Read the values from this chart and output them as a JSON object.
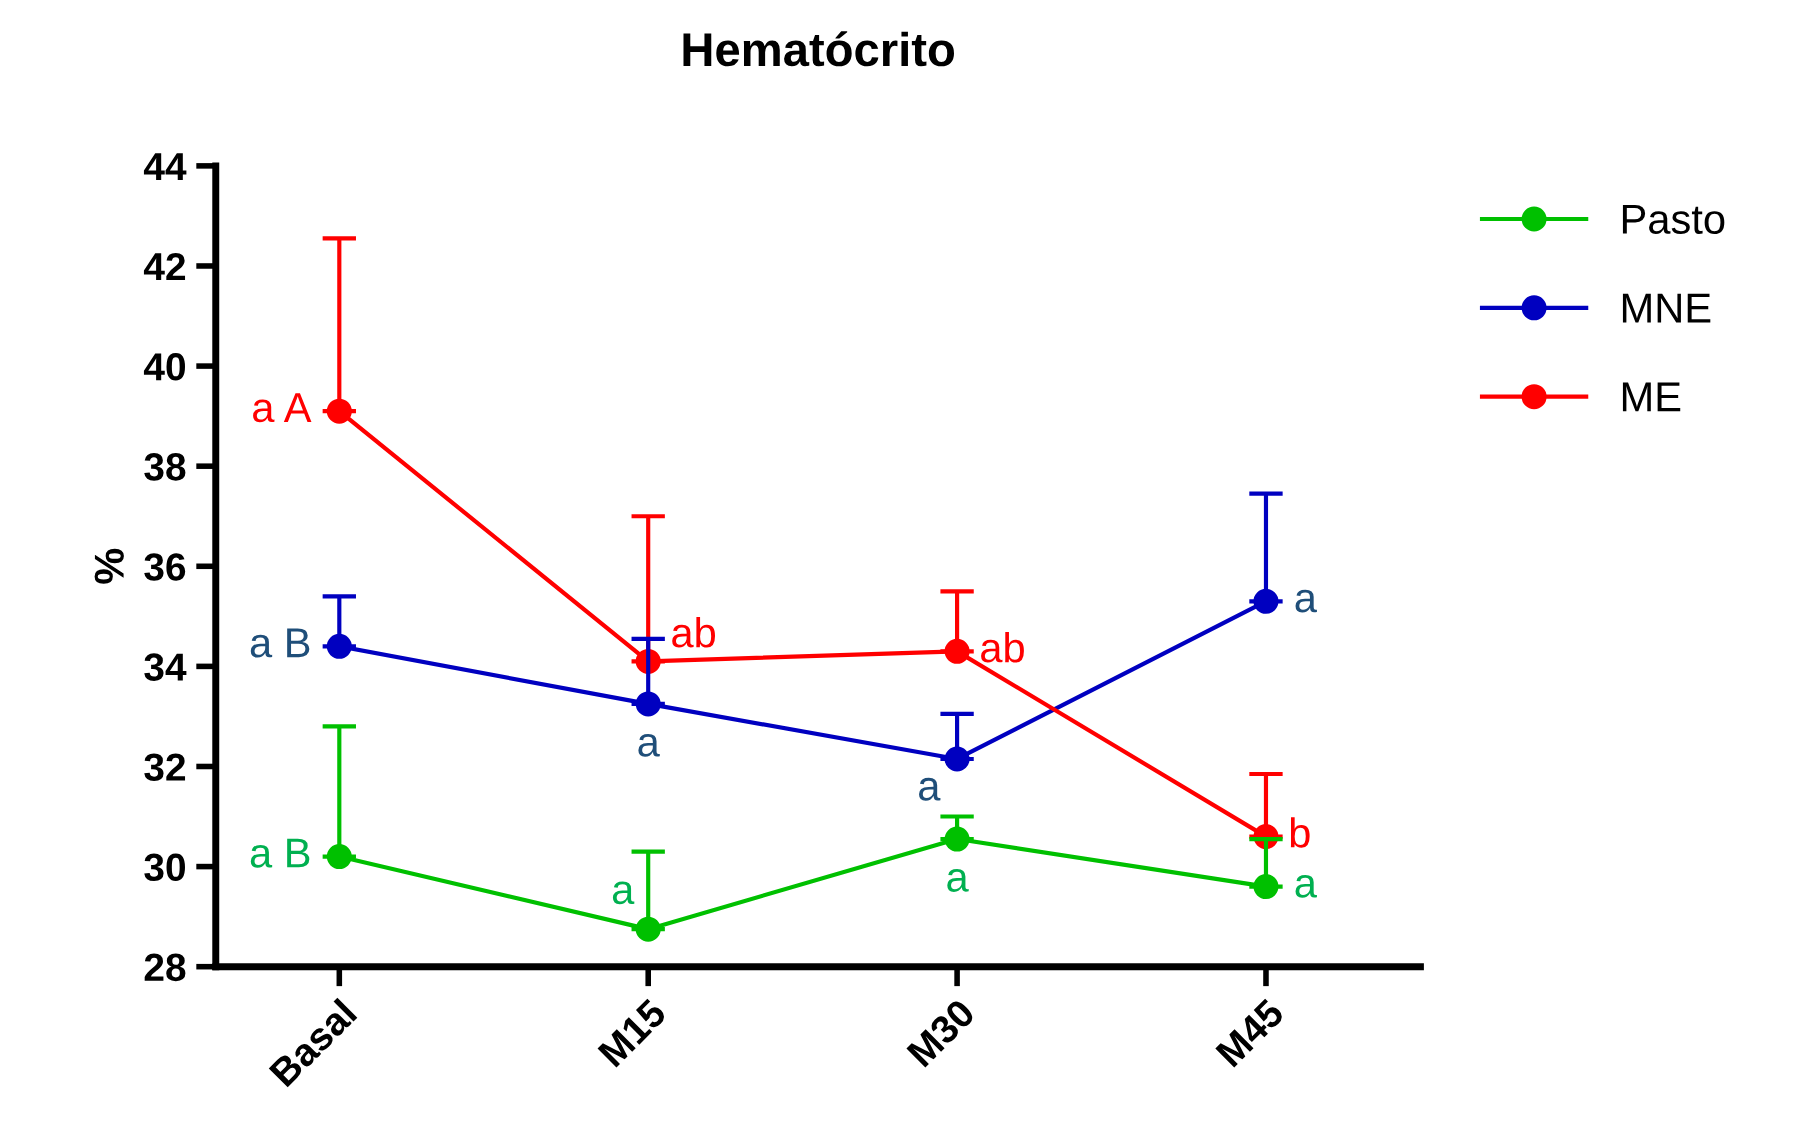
{
  "chart_data": {
    "type": "line",
    "title": "Hematócrito",
    "ylabel": "%",
    "categories": [
      "Basal",
      "M15",
      "M30",
      "M45"
    ],
    "series": [
      {
        "name": "Pasto",
        "color": "#00c000",
        "values": [
          30.2,
          28.75,
          30.55,
          29.6
        ],
        "errors": [
          [
            30.2,
            32.8
          ],
          [
            28.75,
            30.3
          ],
          [
            30.55,
            31.0
          ],
          [
            29.6,
            30.55
          ]
        ]
      },
      {
        "name": "MNE",
        "color": "#0000c0",
        "values": [
          34.4,
          33.25,
          32.15,
          35.3
        ],
        "errors": [
          [
            34.4,
            35.4
          ],
          [
            33.25,
            34.55
          ],
          [
            32.15,
            33.05
          ],
          [
            35.3,
            37.45
          ]
        ]
      },
      {
        "name": "ME",
        "color": "#ff0000",
        "values": [
          39.1,
          34.1,
          34.3,
          30.6
        ],
        "errors": [
          [
            39.1,
            42.55
          ],
          [
            34.1,
            37.0
          ],
          [
            34.3,
            35.5
          ],
          [
            30.6,
            31.85
          ]
        ]
      }
    ],
    "annotations": [
      {
        "text": "a B",
        "x": "Basal",
        "y": 30.2
      },
      {
        "text": "a",
        "x": "M15",
        "y": 28.75
      },
      {
        "text": "a",
        "x": "M30",
        "y": 30.55
      },
      {
        "text": "a",
        "x": "M45",
        "y": 29.6
      },
      {
        "text": "a B",
        "x": "Basal",
        "y": 34.4
      },
      {
        "text": "a",
        "x": "M15",
        "y": 33.25
      },
      {
        "text": "a",
        "x": "M30",
        "y": 32.15
      },
      {
        "text": "a",
        "x": "M45",
        "y": 35.3
      },
      {
        "text": "a A",
        "x": "Basal",
        "y": 39.1
      },
      {
        "text": "ab",
        "x": "M15",
        "y": 34.1
      },
      {
        "text": "ab",
        "x": "M30",
        "y": 34.3
      },
      {
        "text": "b",
        "x": "M45",
        "y": 30.6
      }
    ],
    "ylim": [
      28,
      44
    ],
    "yticks": [
      28,
      30,
      32,
      34,
      36,
      38,
      40,
      42,
      44
    ],
    "marker": "circle",
    "line_style": "solid",
    "legend": "top right",
    "grid": false
  }
}
